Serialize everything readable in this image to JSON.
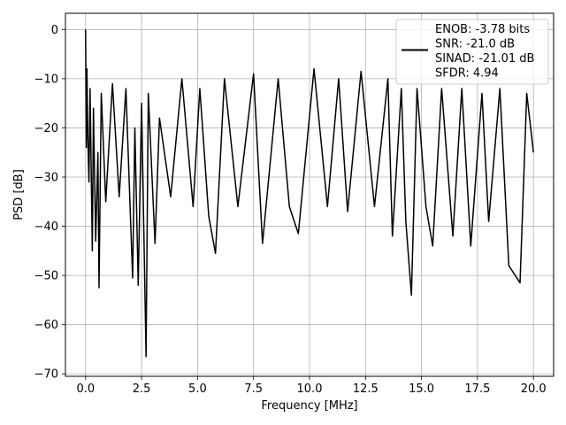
{
  "chart_data": {
    "type": "line",
    "xlabel": "Frequency [MHz]",
    "ylabel": "PSD [dB]",
    "xlim": [
      -0.9,
      20.9
    ],
    "ylim": [
      -70.5,
      3.3
    ],
    "x_ticks": [
      0.0,
      2.5,
      5.0,
      7.5,
      10.0,
      12.5,
      15.0,
      17.5,
      20.0
    ],
    "x_tick_labels": [
      "0.0",
      "2.5",
      "5.0",
      "7.5",
      "10.0",
      "12.5",
      "15.0",
      "17.5",
      "20.0"
    ],
    "y_ticks": [
      0,
      -10,
      -20,
      -30,
      -40,
      -50,
      -60,
      -70
    ],
    "y_tick_labels": [
      "0",
      "−10",
      "−20",
      "−30",
      "−40",
      "−50",
      "−60",
      "−70"
    ],
    "grid": true,
    "legend_position": "top-right",
    "legend_lines": [
      "ENOB: -3.78 bits",
      "SNR: -21.0 dB",
      "SINAD: -21.01 dB",
      "SFDR: 4.94"
    ],
    "series": [
      {
        "color": "#000000",
        "points": [
          [
            0.0,
            0.0
          ],
          [
            0.03,
            -24.0
          ],
          [
            0.06,
            -8.0
          ],
          [
            0.1,
            -22.0
          ],
          [
            0.15,
            -31.0
          ],
          [
            0.2,
            -12.0
          ],
          [
            0.3,
            -45.0
          ],
          [
            0.35,
            -16.0
          ],
          [
            0.45,
            -43.0
          ],
          [
            0.55,
            -25.0
          ],
          [
            0.6,
            -52.5
          ],
          [
            0.7,
            -13.0
          ],
          [
            0.9,
            -35.0
          ],
          [
            1.2,
            -11.0
          ],
          [
            1.5,
            -34.0
          ],
          [
            1.8,
            -12.0
          ],
          [
            2.1,
            -50.5
          ],
          [
            2.2,
            -20.0
          ],
          [
            2.35,
            -52.0
          ],
          [
            2.5,
            -15.0
          ],
          [
            2.7,
            -66.5
          ],
          [
            2.8,
            -13.0
          ],
          [
            3.1,
            -43.5
          ],
          [
            3.3,
            -18.0
          ],
          [
            3.8,
            -34.0
          ],
          [
            4.3,
            -10.0
          ],
          [
            4.8,
            -36.0
          ],
          [
            5.1,
            -12.0
          ],
          [
            5.5,
            -38.0
          ],
          [
            5.8,
            -45.5
          ],
          [
            6.2,
            -10.0
          ],
          [
            6.8,
            -36.0
          ],
          [
            7.5,
            -9.0
          ],
          [
            7.9,
            -43.5
          ],
          [
            8.6,
            -10.0
          ],
          [
            9.1,
            -36.0
          ],
          [
            9.5,
            -41.5
          ],
          [
            10.2,
            -8.0
          ],
          [
            10.8,
            -36.0
          ],
          [
            11.3,
            -10.0
          ],
          [
            11.7,
            -37.0
          ],
          [
            12.3,
            -8.5
          ],
          [
            12.9,
            -36.0
          ],
          [
            13.5,
            -10.0
          ],
          [
            13.7,
            -42.0
          ],
          [
            14.1,
            -12.0
          ],
          [
            14.3,
            -39.0
          ],
          [
            14.55,
            -54.0
          ],
          [
            14.8,
            -12.0
          ],
          [
            15.2,
            -36.0
          ],
          [
            15.5,
            -44.0
          ],
          [
            15.9,
            -12.0
          ],
          [
            16.4,
            -42.0
          ],
          [
            16.8,
            -12.0
          ],
          [
            17.2,
            -44.0
          ],
          [
            17.7,
            -13.0
          ],
          [
            18.0,
            -39.0
          ],
          [
            18.5,
            -12.0
          ],
          [
            18.9,
            -48.0
          ],
          [
            19.4,
            -51.5
          ],
          [
            19.7,
            -13.0
          ],
          [
            20.0,
            -25.0
          ]
        ]
      }
    ]
  }
}
